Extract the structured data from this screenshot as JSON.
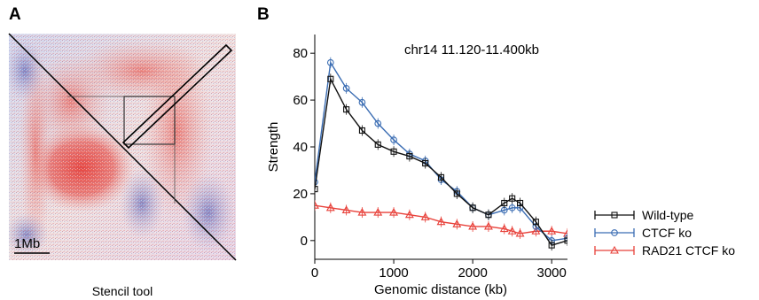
{
  "panel_a": {
    "letter": "A",
    "scale_bar_label": "1Mb",
    "caption": "Stencil tool",
    "colors": {
      "high": "#e8413a",
      "low": "#3b4fa8",
      "mid": "#f2eeee"
    }
  },
  "panel_b": {
    "letter": "B"
  },
  "chart_data": {
    "type": "line",
    "annotation": "chr14 11.120-11.400kb",
    "xlabel": "Genomic distance (kb)",
    "ylabel": "Strength",
    "xlim": [
      0,
      3200
    ],
    "ylim": [
      -8,
      88
    ],
    "xticks": [
      0,
      1000,
      2000,
      3000
    ],
    "yticks": [
      0,
      20,
      40,
      60,
      80
    ],
    "legend_position": "right",
    "x": [
      0,
      200,
      400,
      600,
      800,
      1000,
      1200,
      1400,
      1600,
      1800,
      2000,
      2200,
      2400,
      2500,
      2600,
      2800,
      3000,
      3200
    ],
    "series": [
      {
        "name": "Wild-type",
        "marker": "square",
        "color": "#111111",
        "values": [
          22,
          69,
          56,
          47,
          41,
          38,
          36,
          33,
          27,
          20,
          14,
          11,
          16,
          18,
          16,
          8,
          -2,
          0
        ]
      },
      {
        "name": "CTCF ko",
        "marker": "circle",
        "color": "#3b6db3",
        "values": [
          25,
          76,
          65,
          59,
          50,
          43,
          37,
          34,
          26,
          21,
          14,
          11,
          13,
          14,
          14,
          6,
          0,
          1
        ]
      },
      {
        "name": "RAD21 CTCF ko",
        "marker": "triangle",
        "color": "#e8413a",
        "values": [
          15,
          14,
          13,
          12,
          12,
          12,
          11,
          10,
          8,
          7,
          6,
          6,
          5,
          4,
          3,
          4,
          4,
          3
        ]
      }
    ]
  }
}
